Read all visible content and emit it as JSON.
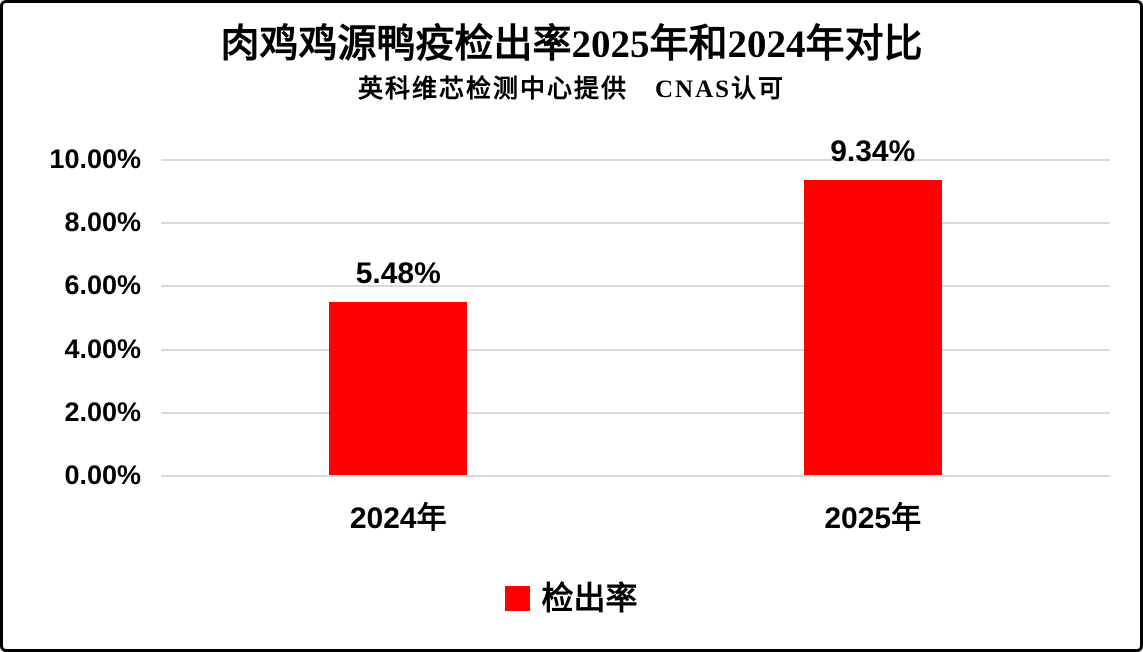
{
  "frame": {
    "background": "#FFFFFF",
    "border_color": "#000000"
  },
  "chart_data": {
    "type": "bar",
    "title": "肉鸡鸡源鸭疫检出率2025年和2024年对比",
    "subtitle": "英科维芯检测中心提供　CNAS认可",
    "categories": [
      "2024年",
      "2025年"
    ],
    "series": [
      {
        "name": "检出率",
        "values": [
          5.48,
          9.34
        ]
      }
    ],
    "value_labels": [
      "5.48%",
      "9.34%"
    ],
    "xlabel": "",
    "ylabel": "",
    "ylim": [
      0,
      10
    ],
    "ytick_interval": 2,
    "yticks": [
      {
        "value": 10,
        "label": "10.00%"
      },
      {
        "value": 8,
        "label": "8.00%"
      },
      {
        "value": 6,
        "label": "6.00%"
      },
      {
        "value": 4,
        "label": "4.00%"
      },
      {
        "value": 2,
        "label": "2.00%"
      },
      {
        "value": 0,
        "label": "0.00%"
      }
    ],
    "grid": true,
    "gridline_color": "#D9D9D9",
    "bar_color": "#FF0000",
    "legend": {
      "position": "bottom",
      "items": [
        {
          "label": "检出率",
          "color": "#FF0000",
          "swatch": "red-square-swatch"
        }
      ]
    }
  }
}
